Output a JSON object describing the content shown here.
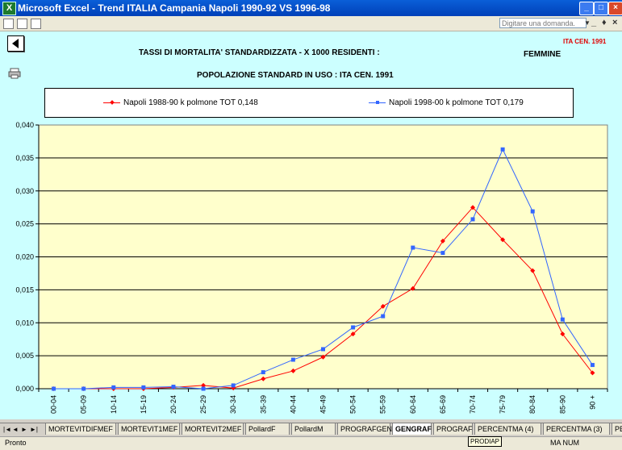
{
  "window": {
    "title": "Microsoft Excel - Trend ITALIA Campania Napoli 1990-92 VS 1996-98",
    "app_icon": "excel-icon",
    "controls": [
      "minimize",
      "maximize",
      "close"
    ]
  },
  "toolbar": {
    "ask_placeholder": "Digitare una domanda.",
    "icons": [
      "save-icon",
      "print-preview-icon",
      "print-icon"
    ],
    "mdi_controls": [
      "_",
      "♦",
      "×"
    ]
  },
  "sheet": {
    "corner_label": "ITA CEN. 1991",
    "title1": "TASSI DI MORTALITA' STANDARDIZZATA - X 1000 RESIDENTI :",
    "sex": "FEMMINE",
    "title2": "POPOLAZIONE STANDARD IN USO : ITA CEN. 1991"
  },
  "chart_data": {
    "type": "line",
    "title": "",
    "xlabel": "",
    "ylabel": "",
    "ylim": [
      0,
      0.04
    ],
    "yticks": [
      "0,000",
      "0,005",
      "0,010",
      "0,015",
      "0,020",
      "0,025",
      "0,030",
      "0,035",
      "0,040"
    ],
    "categories": [
      "00-04",
      "05-09",
      "10-14",
      "15-19",
      "20-24",
      "25-29",
      "30-34",
      "35-39",
      "40-44",
      "45-49",
      "50-54",
      "55-59",
      "60-64",
      "65-69",
      "70-74",
      "75-79",
      "80-84",
      "85-90",
      "90 +"
    ],
    "grid": "horizontal",
    "legend_position": "top",
    "plot_background": "#ffffcc",
    "series": [
      {
        "name": "Napoli 1988-90 k polmone TOT 0,148",
        "color": "#ff0000",
        "marker": "diamond",
        "values": [
          0,
          0,
          0,
          0,
          0.0002,
          0.0005,
          0.0001,
          0.0015,
          0.0027,
          0.0048,
          0.0083,
          0.0125,
          0.0152,
          0.0224,
          0.0275,
          0.0226,
          0.0179,
          0.0083,
          0.0024
        ]
      },
      {
        "name": "Napoli 1998-00 k polmone TOT 0,179",
        "color": "#3366ff",
        "marker": "square",
        "values": [
          0,
          0,
          0.0002,
          0.0002,
          0.0003,
          0,
          0.0005,
          0.0025,
          0.0044,
          0.006,
          0.0093,
          0.011,
          0.0214,
          0.0206,
          0.0257,
          0.0363,
          0.0269,
          0.0105,
          0.0036
        ]
      }
    ]
  },
  "sheet_tabs": {
    "nav": [
      "|◄",
      "◄",
      "►",
      "►|"
    ],
    "tabs": [
      "MORTEVITDIFMEF",
      "MORTEVIT1MEF",
      "MORTEVIT2MEF",
      "PollardF",
      "PollardM",
      "PROGRAFGEN",
      "GENGRAF",
      "PROGRAF",
      "PERCENTMA (4)",
      "PERCENTMA (3)",
      "PERCEN"
    ],
    "active": "GENGRAF"
  },
  "status": {
    "left": "Pronto",
    "tooltip": "PRODIAP",
    "right": "MA NUM"
  }
}
